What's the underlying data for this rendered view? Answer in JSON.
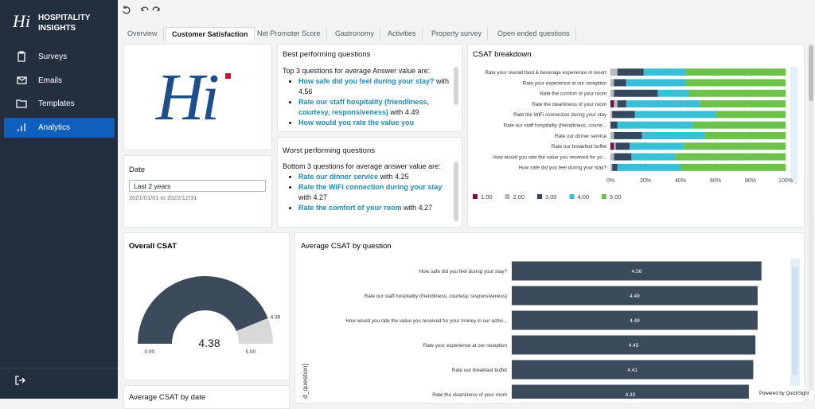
{
  "sidebar": {
    "logo": "Hi",
    "brand": [
      "HOSPITALITY",
      "INSIGHTS"
    ],
    "menu": [
      "Surveys",
      "Emails",
      "Templates",
      "Analytics"
    ],
    "active": 3
  },
  "tabs": {
    "items": [
      "Overview",
      "Customer Satisfaction",
      "Net Promoter Score",
      "Gastronomy",
      "Activities",
      "Property survey",
      "Open ended questions"
    ],
    "active": 1
  },
  "logo_panel": {
    "logo": "Hi"
  },
  "date_panel": {
    "title": "Date",
    "selection": "Last 2 years",
    "range": "2021/01/01 to 2022/12/31"
  },
  "best": {
    "title": "Best performing questions",
    "intro": "Top 3 questions for average Answer value are:",
    "items": [
      {
        "question": "How safe did you feel during your stay?",
        "connector": "with",
        "value": 4.56
      },
      {
        "question": "Rate our staff hospitality (friendliness, courtesy, responsiveness)",
        "connector": "with",
        "value": 4.49
      },
      {
        "question": "How would you rate the value you"
      }
    ]
  },
  "worst": {
    "title": "Worst performing questions",
    "intro": "Bottom 3 questions for average answer value are:",
    "items": [
      {
        "question": "Rate our dinner service",
        "connector": "with",
        "value": 4.25
      },
      {
        "question": "Rate the WiFi connection during your stay",
        "connector": "with",
        "value": 4.27
      },
      {
        "question": "Rate the comfort of your room",
        "connector": "with",
        "value": 4.27
      }
    ]
  },
  "chart_data": [
    {
      "type": "stacked-bar-horizontal",
      "title": "CSAT breakdown",
      "categories": [
        "Rate your overall food & beverage experience in resort",
        "Rate your experience at our reception",
        "Rate the comfort of your room",
        "Rate the cleanliness of your room",
        "Rate the WiFi connection during your stay",
        "Rate our staff hospitality (friendliness, courte...",
        "Rate our dinner service",
        "Rate our breakfast buffet",
        "How would you rate the value you received for yo...",
        "How safe did you feel during your stay?"
      ],
      "series": [
        {
          "name": "1.00",
          "color": "#7b0e3c",
          "values": [
            0,
            0,
            0,
            2,
            0,
            0,
            0,
            2,
            0,
            0
          ]
        },
        {
          "name": "2.00",
          "color": "#b3b9bf",
          "values": [
            4,
            2,
            2,
            2,
            1,
            0,
            2,
            1,
            2,
            1
          ]
        },
        {
          "name": "3.00",
          "color": "#34495e",
          "values": [
            15,
            7,
            25,
            5,
            13,
            4,
            16,
            8,
            10,
            3
          ]
        },
        {
          "name": "4.00",
          "color": "#3ac0d6",
          "values": [
            24,
            34,
            18,
            42,
            46,
            43,
            36,
            31,
            25,
            36
          ]
        },
        {
          "name": "5.00",
          "color": "#6cc24a",
          "values": [
            57,
            57,
            55,
            49,
            40,
            53,
            46,
            58,
            63,
            60
          ]
        }
      ],
      "xlim": [
        0,
        100
      ],
      "xticks": [
        {
          "value": 0,
          "label": "0%"
        },
        {
          "value": 20,
          "label": "20%"
        },
        {
          "value": 40,
          "label": "40%"
        },
        {
          "value": 60,
          "label": "60%"
        },
        {
          "value": 80,
          "label": "80%"
        },
        {
          "value": 100,
          "label": "100%"
        }
      ],
      "grid": true
    },
    {
      "type": "gauge",
      "title": "Overall CSAT",
      "value": 4.38,
      "ylim": [
        0,
        5
      ],
      "yticks": [
        {
          "value": 0,
          "label": "0.00"
        },
        {
          "value": 5,
          "label": "5.00"
        }
      ],
      "color": "#3b4b5c",
      "track_color": "#d9d9d9"
    },
    {
      "type": "bar-horizontal",
      "title": "Average CSAT by question",
      "ylabel": "d_question]",
      "categories": [
        "How safe did you feel during your stay?",
        "Rate our staff hospitality (friendliness, courtesy, responsiveness)",
        "How would you rate the value you received for your money in our activi...",
        "Rate your experience at our reception",
        "Rate our breakfast buffet",
        "Rate the cleanliness of your room"
      ],
      "values": [
        4.56,
        4.49,
        4.49,
        4.45,
        4.41,
        4.33
      ],
      "xlim": [
        0,
        5
      ],
      "color": "#3b4b5c"
    }
  ],
  "date_chart": {
    "title": "Average CSAT by date"
  },
  "footer": "Powered by QuickSight"
}
